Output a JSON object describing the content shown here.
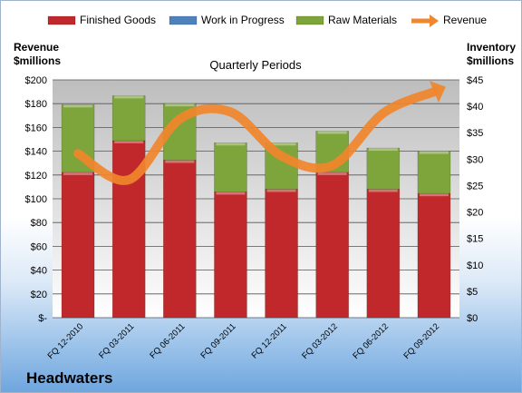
{
  "chart_data": {
    "type": "bar",
    "title": "Quarterly Periods",
    "company": "Headwaters",
    "left_axis_label": [
      "Revenue",
      "$millions"
    ],
    "right_axis_label": [
      "Inventory",
      "$millions"
    ],
    "categories": [
      "FQ 12-2010",
      "FQ 03-2011",
      "FQ 06-2011",
      "FQ 09-2011",
      "FQ 12-2011",
      "FQ 03-2012",
      "FQ 06-2012",
      "FQ 09-2012"
    ],
    "left_ticks": [
      "$-",
      "$20",
      "$40",
      "$60",
      "$80",
      "$100",
      "$120",
      "$140",
      "$160",
      "$180",
      "$200"
    ],
    "right_ticks": [
      "$0",
      "$5",
      "$10",
      "$15",
      "$20",
      "$25",
      "$30",
      "$35",
      "$40",
      "$45"
    ],
    "left_range": [
      0,
      200
    ],
    "right_range": [
      0,
      45
    ],
    "stacked": true,
    "series": [
      {
        "name": "Finished Goods",
        "axis": "right",
        "color": "#c0282b",
        "values": [
          27.5,
          33.5,
          29.8,
          23.8,
          24.3,
          27.5,
          24.3,
          23.5
        ]
      },
      {
        "name": "Work in Progress",
        "axis": "right",
        "color": "#4f81bd",
        "values": [
          0,
          0,
          0,
          0,
          0,
          0,
          0,
          0
        ]
      },
      {
        "name": "Raw Materials",
        "axis": "right",
        "color": "#7ea43c",
        "values": [
          12.8,
          8.5,
          10.7,
          9.3,
          8.8,
          7.8,
          7.8,
          8.0
        ]
      },
      {
        "name": "Revenue",
        "type": "line",
        "axis": "left",
        "color": "#f0862d",
        "values": [
          138,
          116,
          167,
          173,
          136,
          128,
          172,
          190
        ]
      }
    ],
    "grid": true,
    "legend": "top"
  }
}
